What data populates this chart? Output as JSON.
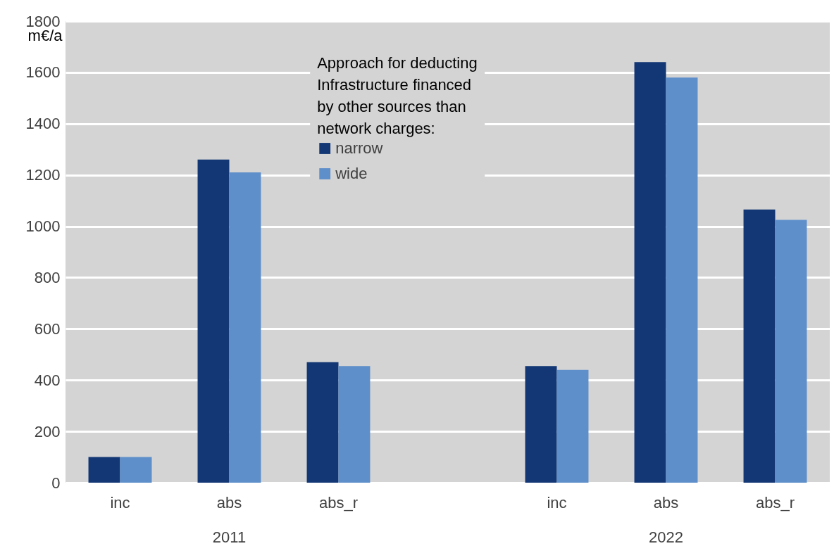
{
  "chart_data": {
    "type": "bar",
    "categories": [
      "inc",
      "abs",
      "abs_r",
      null,
      "inc",
      "abs",
      "abs_r"
    ],
    "series": [
      {
        "name": "narrow",
        "color": "#133774",
        "values": [
          100,
          1260,
          470,
          null,
          455,
          1640,
          1065
        ]
      },
      {
        "name": "wide",
        "color": "#5e8fca",
        "values": [
          100,
          1210,
          455,
          null,
          440,
          1580,
          1025
        ]
      }
    ],
    "ylabel": "m€/a",
    "legend_title": "Approach for deducting Infrastructure financed by other sources than network charges:",
    "annotations": [
      "2011",
      "2022"
    ],
    "ylim": [
      0,
      1800
    ],
    "yticks": [
      0,
      200,
      400,
      600,
      800,
      1000,
      1200,
      1400,
      1600,
      1800
    ],
    "grid": "y",
    "legend": "top"
  }
}
